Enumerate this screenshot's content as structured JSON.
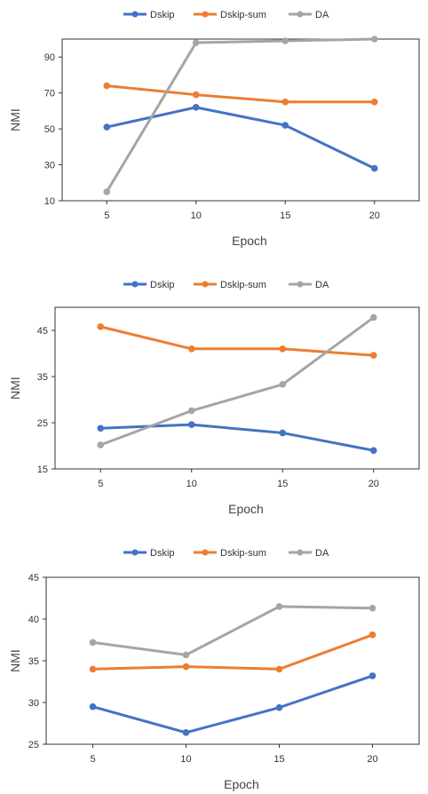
{
  "chart_data": [
    {
      "type": "line",
      "categories": [
        "5",
        "10",
        "15",
        "20"
      ],
      "xlabel": "Epoch",
      "ylabel": "NMI",
      "ylim": [
        10,
        100
      ],
      "yticks": [
        "10",
        "30",
        "50",
        "70",
        "90"
      ],
      "legend_position": "top-center",
      "grid": false,
      "series": [
        {
          "name": "Dskip",
          "color": "#4472c4",
          "values": [
            51,
            62,
            52,
            28
          ]
        },
        {
          "name": "Dskip-sum",
          "color": "#ed7d31",
          "values": [
            74,
            69,
            65,
            65
          ]
        },
        {
          "name": "DA",
          "color": "#a5a5a5",
          "values": [
            15,
            98,
            99,
            100
          ]
        }
      ]
    },
    {
      "type": "line",
      "categories": [
        "5",
        "10",
        "15",
        "20"
      ],
      "xlabel": "Epoch",
      "ylabel": "NMI",
      "ylim": [
        15,
        50
      ],
      "yticks": [
        "15",
        "25",
        "35",
        "45"
      ],
      "legend_position": "top-center",
      "grid": false,
      "series": [
        {
          "name": "Dskip",
          "color": "#4472c4",
          "values": [
            23.8,
            24.6,
            22.8,
            19.0
          ]
        },
        {
          "name": "Dskip-sum",
          "color": "#ed7d31",
          "values": [
            45.8,
            41.0,
            41.0,
            39.6
          ]
        },
        {
          "name": "DA",
          "color": "#a5a5a5",
          "values": [
            20.2,
            27.6,
            33.3,
            47.8
          ]
        }
      ]
    },
    {
      "type": "line",
      "categories": [
        "5",
        "10",
        "15",
        "20"
      ],
      "xlabel": "Epoch",
      "ylabel": "NMI",
      "ylim": [
        25,
        45
      ],
      "yticks": [
        "25",
        "30",
        "35",
        "40",
        "45"
      ],
      "legend_position": "top-center",
      "grid": false,
      "series": [
        {
          "name": "Dskip",
          "color": "#4472c4",
          "values": [
            29.5,
            26.4,
            29.4,
            33.2
          ]
        },
        {
          "name": "Dskip-sum",
          "color": "#ed7d31",
          "values": [
            34.0,
            34.3,
            34.0,
            38.1
          ]
        },
        {
          "name": "DA",
          "color": "#a5a5a5",
          "values": [
            37.2,
            35.7,
            41.5,
            41.3
          ]
        }
      ]
    }
  ]
}
